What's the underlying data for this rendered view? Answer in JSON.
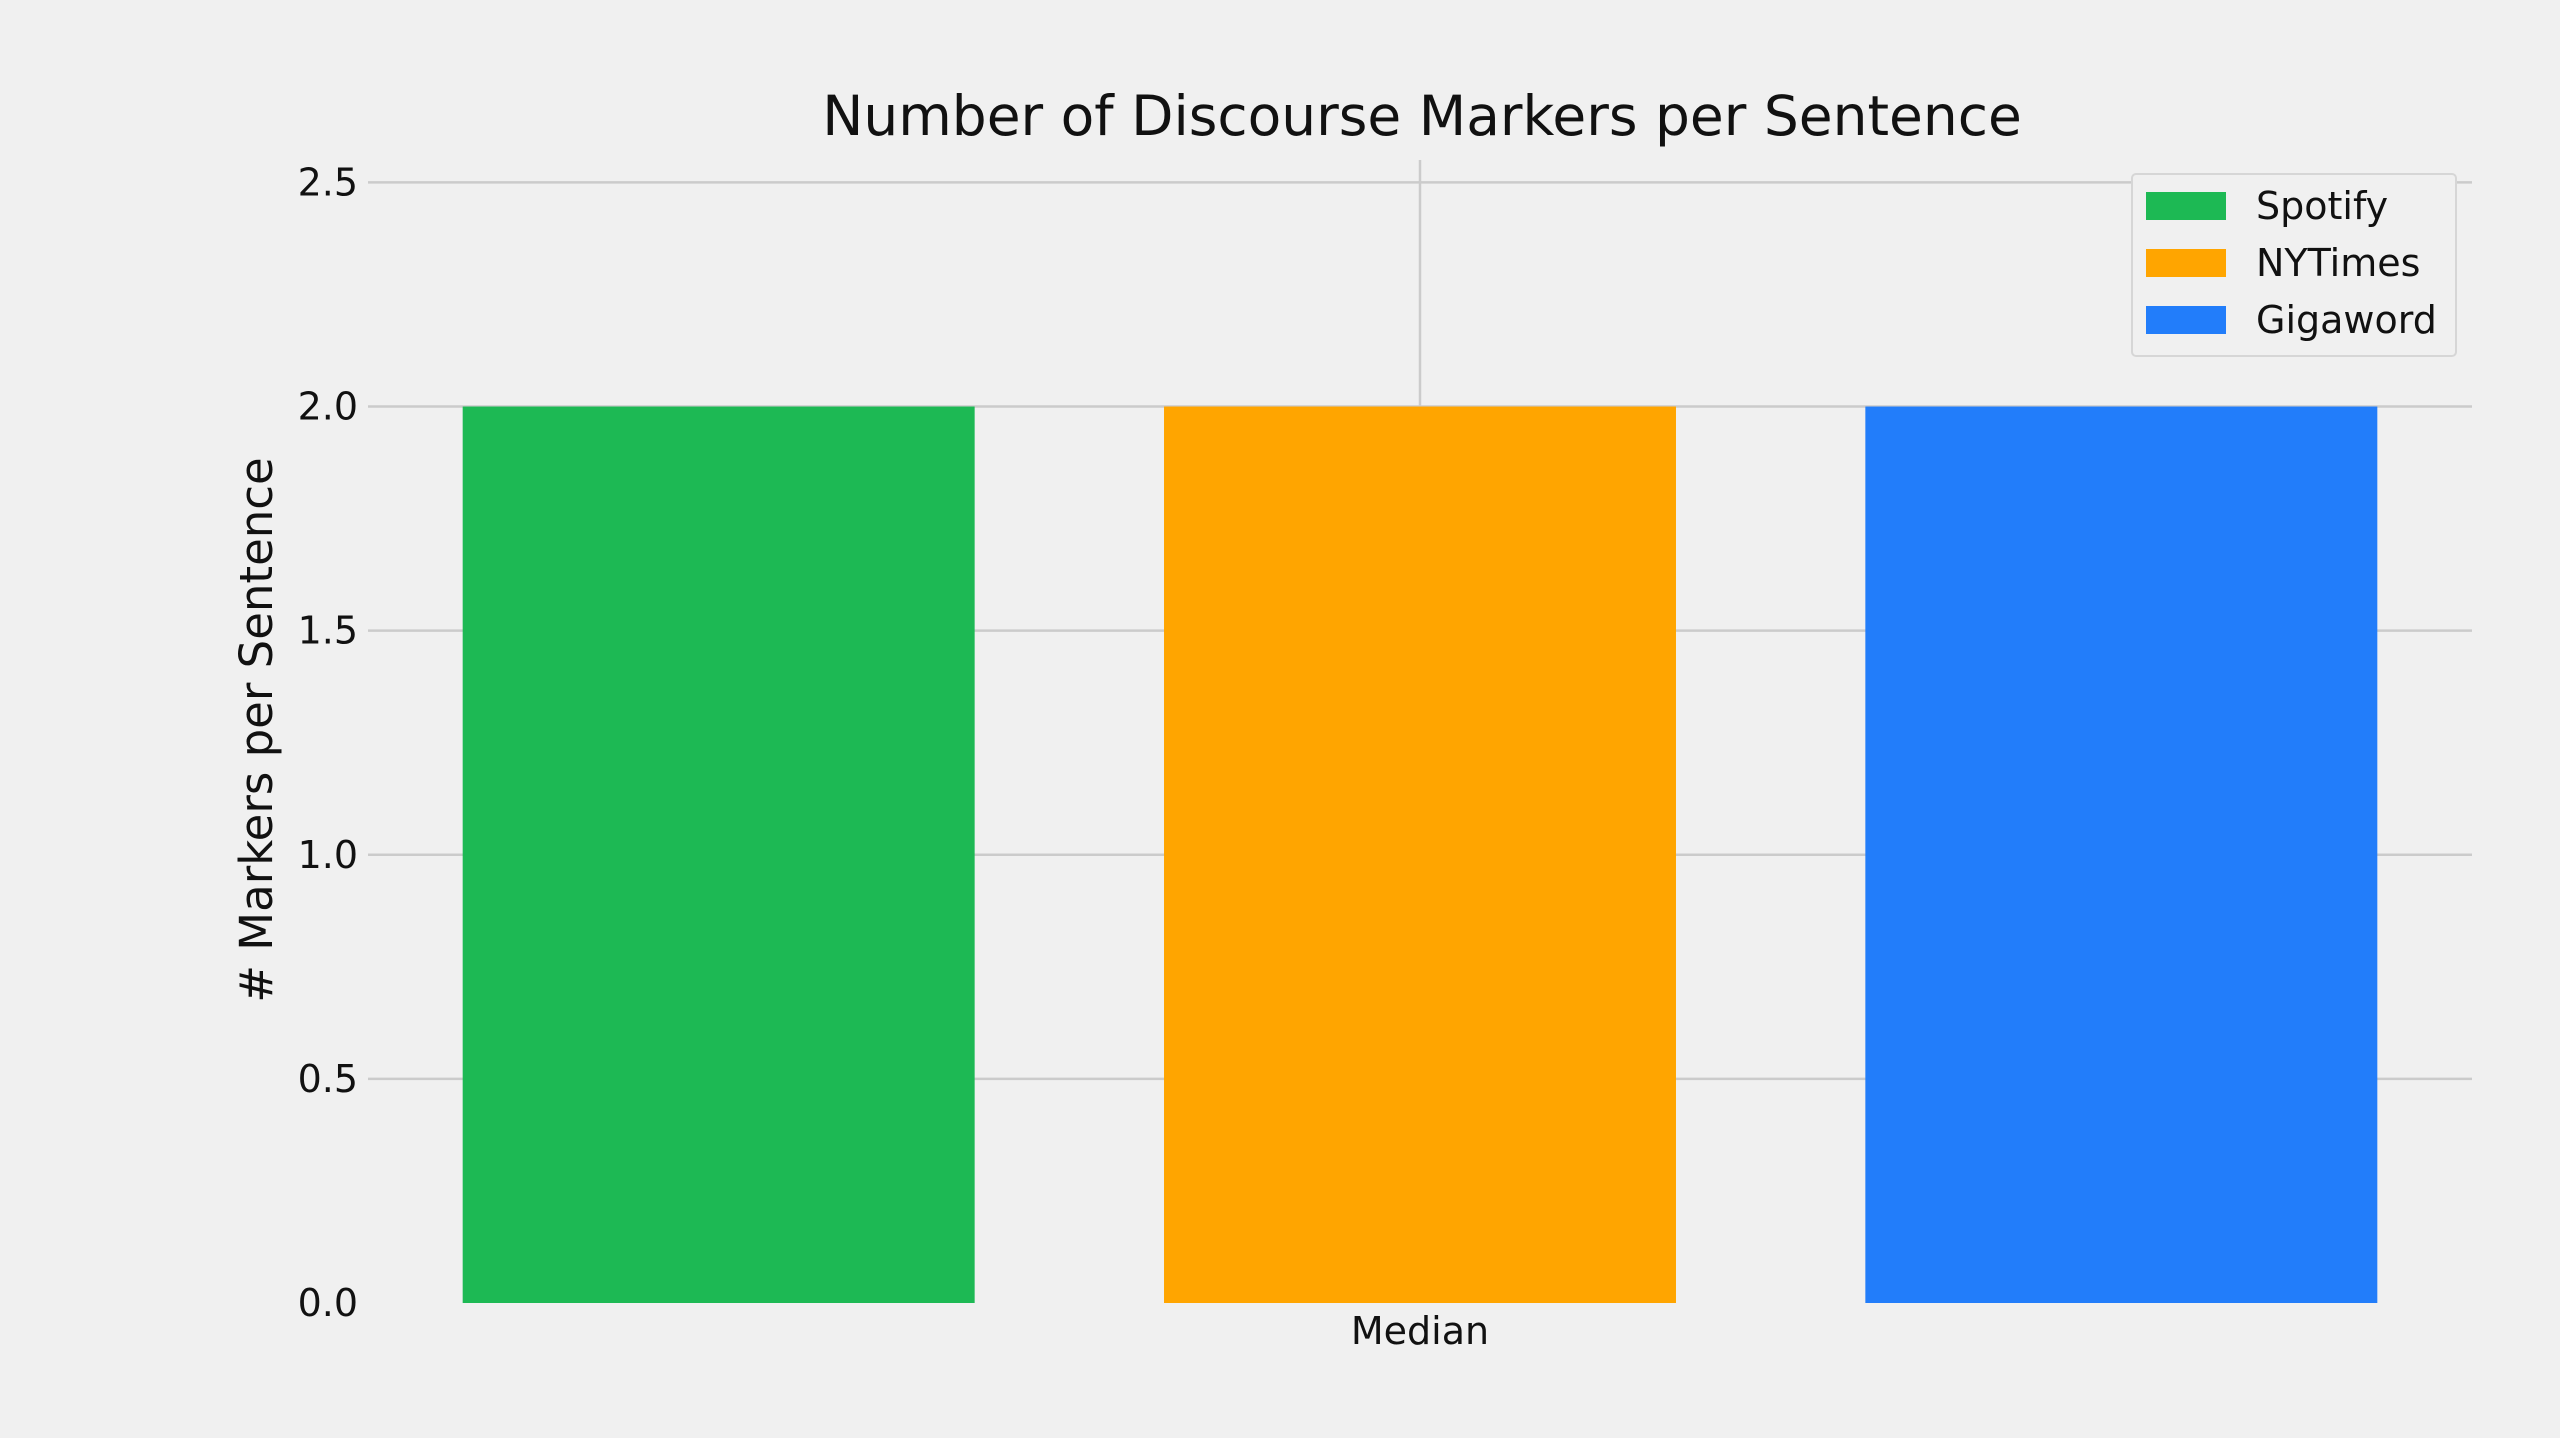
{
  "chart_data": {
    "type": "bar",
    "title": "Number of Discourse Markers per Sentence",
    "xlabel": "",
    "ylabel": "# Markers per Sentence",
    "categories": [
      "Median"
    ],
    "series": [
      {
        "name": "Spotify",
        "values": [
          2.0
        ],
        "color": "#1db954"
      },
      {
        "name": "NYTimes",
        "values": [
          2.0
        ],
        "color": "#ffa500"
      },
      {
        "name": "Gigaword",
        "values": [
          2.0
        ],
        "color": "#227dfa"
      }
    ],
    "ylim": [
      0,
      2.55
    ],
    "yticks": [
      0.0,
      0.5,
      1.0,
      1.5,
      2.0,
      2.5
    ],
    "ytick_labels": [
      "0.0",
      "0.5",
      "1.0",
      "1.5",
      "2.0",
      "2.5"
    ],
    "grid": true,
    "legend_position": "top-right"
  }
}
